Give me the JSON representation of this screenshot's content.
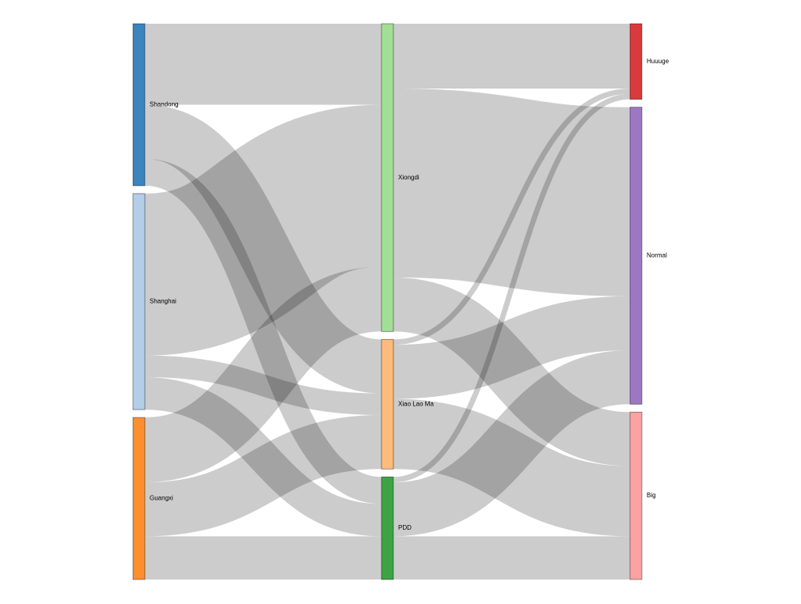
{
  "chart_data": {
    "type": "sankey",
    "nodes": [
      {
        "name": "Shandong",
        "color": "#3a84bf"
      },
      {
        "name": "Shanghai",
        "color": "#b4cde9"
      },
      {
        "name": "Guangxi",
        "color": "#fd8f2f"
      },
      {
        "name": "Xiongdi",
        "color": "#a3de97"
      },
      {
        "name": "Xiao Lao Ma",
        "color": "#fdbb7d"
      },
      {
        "name": "PDD",
        "color": "#3ea345"
      },
      {
        "name": "Huuuge",
        "color": "#d83a3d"
      },
      {
        "name": "Normal",
        "color": "#9d77c4"
      },
      {
        "name": "Big",
        "color": "#fca2a2"
      }
    ],
    "links": [
      {
        "source": "Shandong",
        "target": "Xiongdi",
        "value": 15
      },
      {
        "source": "Shandong",
        "target": "Xiao Lao Ma",
        "value": 10
      },
      {
        "source": "Shandong",
        "target": "PDD",
        "value": 5
      },
      {
        "source": "Shanghai",
        "target": "Xiongdi",
        "value": 30
      },
      {
        "source": "Shanghai",
        "target": "Xiao Lao Ma",
        "value": 4
      },
      {
        "source": "Shanghai",
        "target": "PDD",
        "value": 6
      },
      {
        "source": "Guangxi",
        "target": "Xiongdi",
        "value": 12
      },
      {
        "source": "Guangxi",
        "target": "Xiao Lao Ma",
        "value": 10
      },
      {
        "source": "Guangxi",
        "target": "PDD",
        "value": 8
      },
      {
        "source": "Xiongdi",
        "target": "Huuuge",
        "value": 12
      },
      {
        "source": "Xiongdi",
        "target": "Normal",
        "value": 35
      },
      {
        "source": "Xiongdi",
        "target": "Big",
        "value": 10
      },
      {
        "source": "Xiao Lao Ma",
        "target": "Huuuge",
        "value": 1
      },
      {
        "source": "Xiao Lao Ma",
        "target": "Normal",
        "value": 10
      },
      {
        "source": "Xiao Lao Ma",
        "target": "Big",
        "value": 13
      },
      {
        "source": "PDD",
        "target": "Huuuge",
        "value": 1
      },
      {
        "source": "PDD",
        "target": "Normal",
        "value": 10
      },
      {
        "source": "PDD",
        "target": "Big",
        "value": 8
      }
    ]
  }
}
